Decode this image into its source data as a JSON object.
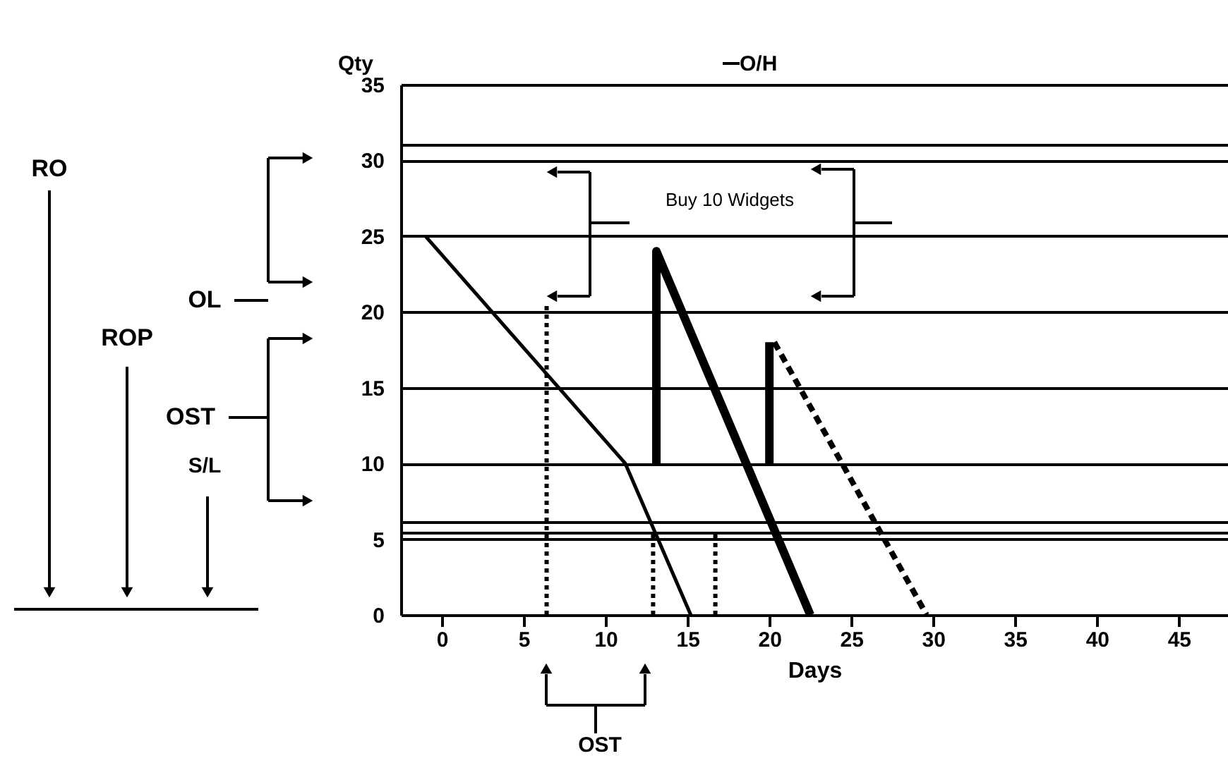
{
  "chart_data": {
    "type": "line",
    "xlabel": "Days",
    "ylabel": "Qty",
    "xlim": [
      -2.5,
      48
    ],
    "xticks": [
      0,
      5,
      10,
      15,
      20,
      25,
      30,
      35,
      40,
      45
    ],
    "ylim": [
      0,
      35
    ],
    "yticks": [
      0,
      5,
      10,
      15,
      20,
      25,
      30,
      35
    ],
    "grid": "y",
    "legend": "top",
    "series": [
      {
        "name": "O/H",
        "color": "#000000",
        "x": [
          -1,
          11.2,
          15.2
        ],
        "values": [
          25,
          10,
          0
        ],
        "line_style": "solid"
      },
      {
        "color": "#000000",
        "x": [
          13.1,
          13.1,
          22.5
        ],
        "values": [
          10,
          24,
          0
        ],
        "line_style": "solid"
      },
      {
        "color": "#000000",
        "x": [
          20,
          20
        ],
        "values": [
          10,
          18
        ],
        "line_style": "solid"
      },
      {
        "color": "#000000",
        "x": [
          20.3,
          29.6
        ],
        "values": [
          18,
          0
        ],
        "line_style": "dashed"
      },
      {
        "color": "#000000",
        "x": [
          6.4,
          6.4
        ],
        "values": [
          0,
          20.5
        ],
        "line_style": "dotted"
      },
      {
        "color": "#000000",
        "x": [
          12.9,
          12.9
        ],
        "values": [
          0,
          5.5
        ],
        "line_style": "dotted"
      },
      {
        "color": "#000000",
        "x": [
          16.7,
          16.7
        ],
        "values": [
          0,
          5.5
        ],
        "line_style": "dotted"
      }
    ],
    "ref_lines": [
      {
        "axis": "y",
        "value": 31
      },
      {
        "axis": "y",
        "value": 6.1
      },
      {
        "axis": "y",
        "value": 5.4
      }
    ],
    "annotations": [
      "RO",
      "ROP",
      "S/L",
      "OL",
      "OST",
      "Buy 10 Widgets",
      "OST"
    ]
  }
}
